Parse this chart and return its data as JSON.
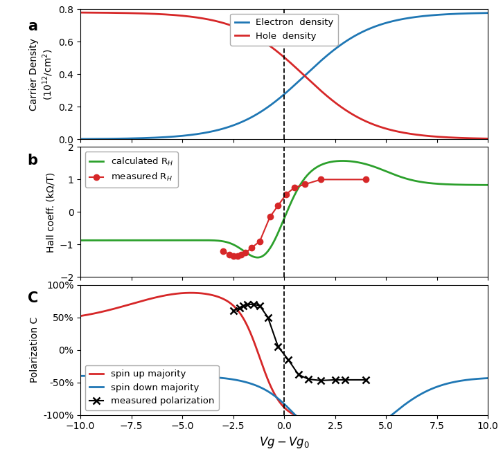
{
  "xlim": [
    -10,
    10
  ],
  "panel_a": {
    "ylabel": "Carrier Density\n(10$^{12}$/cm$^2$)",
    "ylim": [
      0,
      0.8
    ],
    "yticks": [
      0.0,
      0.2,
      0.4,
      0.6,
      0.8
    ],
    "electron_color": "#1f77b4",
    "hole_color": "#d62728",
    "label_electron": "Electron  density",
    "label_hole": "Hole  density"
  },
  "panel_b": {
    "ylabel": "Hall coeff. (kΩ/T)",
    "ylim": [
      -2,
      2
    ],
    "yticks": [
      -2,
      -1,
      0,
      1,
      2
    ],
    "calc_color": "#2ca02c",
    "meas_color": "#d62728",
    "label_calc": "calculated R$_H$",
    "label_meas": "measured R$_H$",
    "measured_x": [
      -3.0,
      -2.7,
      -2.5,
      -2.3,
      -2.1,
      -1.9,
      -1.6,
      -1.2,
      -0.7,
      -0.3,
      0.1,
      0.5,
      1.0,
      1.8,
      4.0
    ],
    "measured_y": [
      -1.2,
      -1.3,
      -1.35,
      -1.35,
      -1.3,
      -1.25,
      -1.1,
      -0.9,
      -0.15,
      0.2,
      0.55,
      0.75,
      0.85,
      1.0,
      1.0
    ]
  },
  "panel_c": {
    "ylabel": "Polarization C",
    "ylim": [
      -1,
      1
    ],
    "yticks": [
      -1.0,
      -0.5,
      0.0,
      0.5,
      1.0
    ],
    "yticklabels": [
      "-100%",
      "-50%",
      "0%",
      "50%",
      "100%"
    ],
    "spinup_color": "#d62728",
    "spindown_color": "#1f77b4",
    "meas_color": "black",
    "label_spinup": "spin up majority",
    "label_spindown": "spin down majority",
    "label_meas": "measured polarization",
    "measured_x": [
      -2.5,
      -2.2,
      -2.0,
      -1.8,
      -1.5,
      -1.2,
      -0.8,
      -0.3,
      0.2,
      0.7,
      1.2,
      1.8,
      2.5,
      3.0,
      4.0
    ],
    "measured_y": [
      0.6,
      0.65,
      0.68,
      0.7,
      0.7,
      0.68,
      0.5,
      0.05,
      -0.15,
      -0.38,
      -0.45,
      -0.47,
      -0.46,
      -0.46,
      -0.46
    ]
  },
  "dashed_x": 0.0,
  "xlabel": "$Vg - Vg_0$",
  "xticks": [
    -10,
    -7.5,
    -5,
    -2.5,
    0,
    2.5,
    5,
    7.5,
    10
  ],
  "label_a": "a",
  "label_b": "b",
  "label_c": "C"
}
